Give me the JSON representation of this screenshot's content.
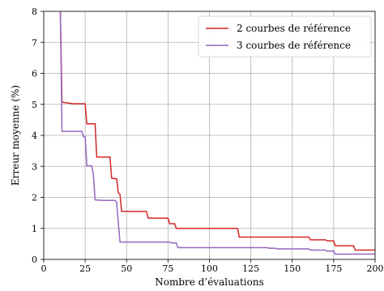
{
  "chart_data": {
    "type": "line",
    "xlabel": "Nombre d’évaluations",
    "ylabel": "Erreur moyenne (%)",
    "xlim": [
      0,
      200
    ],
    "ylim": [
      0,
      8
    ],
    "xticks": [
      0,
      25,
      50,
      75,
      100,
      125,
      150,
      175,
      200
    ],
    "yticks": [
      0,
      1,
      2,
      3,
      4,
      5,
      6,
      7,
      8
    ],
    "xtick_labels": [
      "0",
      "25",
      "50",
      "75",
      "100",
      "125",
      "150",
      "175",
      "200"
    ],
    "ytick_labels": [
      "0",
      "1",
      "2",
      "3",
      "4",
      "5",
      "6",
      "7",
      "8"
    ],
    "grid": true,
    "legend_position": "top-right",
    "series": [
      {
        "name": "2 courbes de référence",
        "color": "#d62728",
        "x": [
          10,
          11,
          18,
          25,
          26,
          31,
          32,
          40,
          41,
          44,
          45,
          46,
          47,
          62,
          63,
          75,
          76,
          79,
          80,
          117,
          118,
          160,
          161,
          170,
          171,
          175,
          176,
          187,
          188,
          200
        ],
        "y": [
          8.0,
          5.07,
          5.02,
          5.02,
          4.37,
          4.37,
          3.3,
          3.3,
          2.62,
          2.6,
          2.15,
          2.1,
          1.55,
          1.55,
          1.33,
          1.33,
          1.15,
          1.15,
          1.0,
          1.0,
          0.72,
          0.72,
          0.63,
          0.63,
          0.6,
          0.6,
          0.44,
          0.44,
          0.3,
          0.3
        ]
      },
      {
        "name": "3 courbes de référence",
        "color": "#9467bd",
        "x": [
          10,
          11,
          23,
          24,
          25,
          26,
          29,
          30,
          31,
          36,
          38,
          43,
          44,
          45,
          46,
          76,
          77,
          80,
          81,
          135,
          136,
          140,
          141,
          160,
          161,
          170,
          171,
          175,
          176,
          200
        ],
        "y": [
          8.0,
          4.13,
          4.13,
          3.95,
          3.95,
          3.02,
          3.02,
          2.72,
          1.92,
          1.9,
          1.9,
          1.9,
          1.85,
          1.2,
          0.56,
          0.56,
          0.53,
          0.53,
          0.38,
          0.38,
          0.36,
          0.36,
          0.34,
          0.34,
          0.3,
          0.3,
          0.27,
          0.27,
          0.17,
          0.17
        ]
      }
    ]
  }
}
